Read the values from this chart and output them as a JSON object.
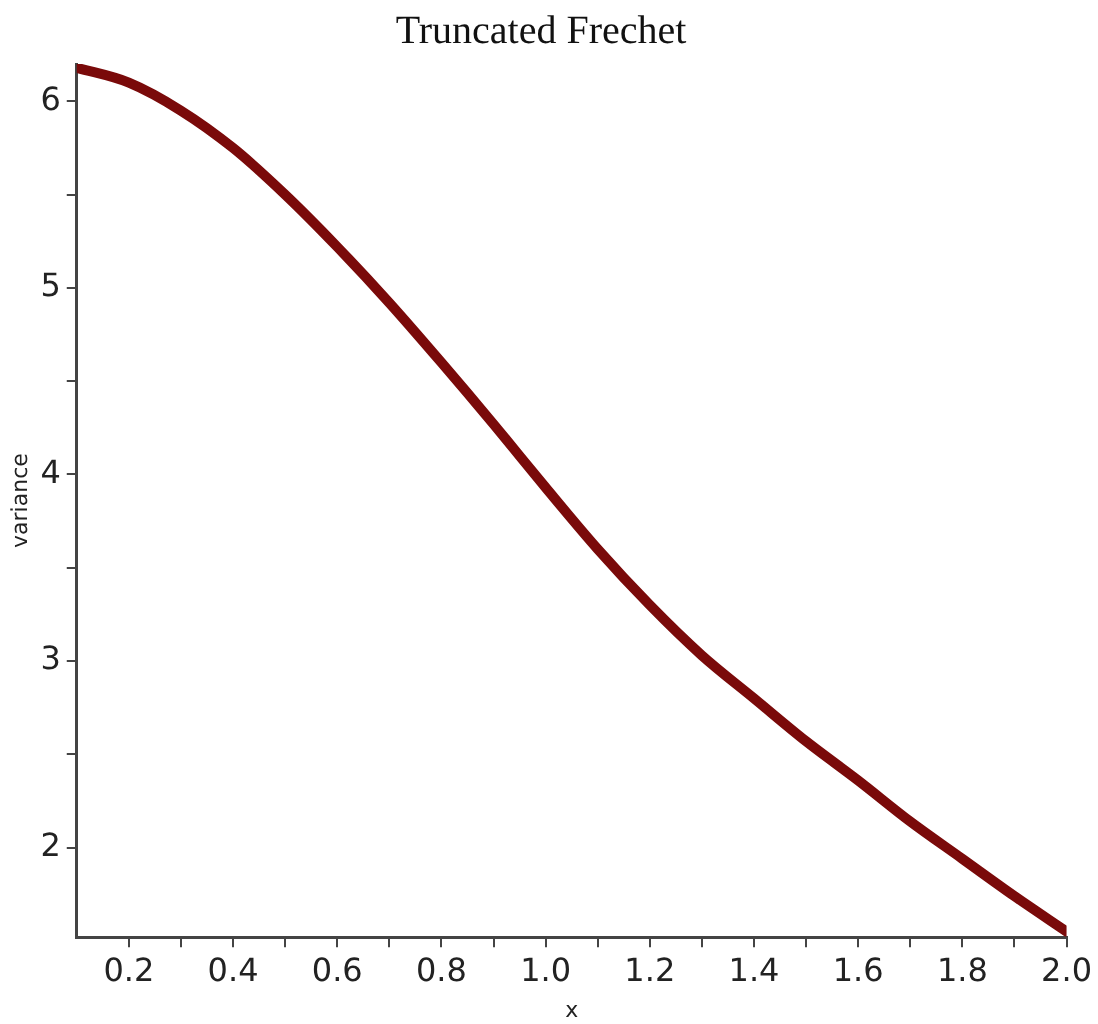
{
  "chart_data": {
    "type": "line",
    "title": "Truncated Frechet",
    "xlabel": "x",
    "ylabel": "variance",
    "x": [
      0.1,
      0.2,
      0.3,
      0.4,
      0.5,
      0.6,
      0.7,
      0.8,
      0.9,
      1.0,
      1.1,
      1.2,
      1.3,
      1.4,
      1.5,
      1.6,
      1.7,
      1.8,
      1.9,
      2.0
    ],
    "series": [
      {
        "color": "#7a0a0a",
        "values": [
          6.18,
          6.1,
          5.95,
          5.75,
          5.5,
          5.22,
          4.92,
          4.6,
          4.27,
          3.93,
          3.6,
          3.3,
          3.03,
          2.8,
          2.57,
          2.36,
          2.14,
          1.94,
          1.74,
          1.55
        ]
      }
    ],
    "xlim": [
      0.1,
      2.0
    ],
    "ylim": [
      1.52,
      6.2
    ],
    "xticks": [
      0.2,
      {
        "value": 0.3,
        "label": null
      },
      0.4,
      {
        "value": 0.5,
        "label": null
      },
      0.6,
      {
        "value": 0.7,
        "label": null
      },
      0.8,
      {
        "value": 0.9,
        "label": null
      },
      {
        "value": 1.0,
        "label": "1.0"
      },
      {
        "value": 1.1,
        "label": null
      },
      1.2,
      {
        "value": 1.3,
        "label": null
      },
      1.4,
      {
        "value": 1.5,
        "label": null
      },
      1.6,
      {
        "value": 1.7,
        "label": null
      },
      1.8,
      {
        "value": 1.9,
        "label": null
      },
      {
        "value": 2.0,
        "label": "2.0"
      }
    ],
    "yticks": [
      2,
      {
        "value": 2.5,
        "label": null
      },
      3,
      {
        "value": 3.5,
        "label": null
      },
      4,
      {
        "value": 4.5,
        "label": null
      },
      5,
      {
        "value": 5.5,
        "label": null
      },
      6
    ],
    "grid": false,
    "legend": false,
    "marker": "none",
    "line_style": "solid"
  }
}
